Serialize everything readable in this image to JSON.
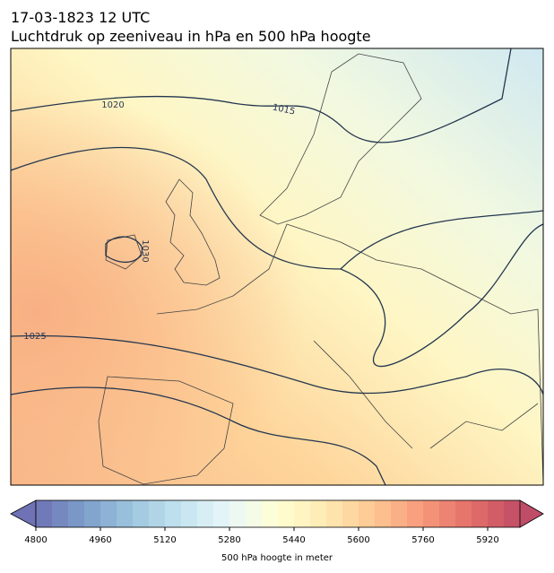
{
  "header": {
    "title": "17-03-1823 12 UTC",
    "subtitle": "Luchtdruk op zeeniveau in hPa en 500 hPa hoogte"
  },
  "map": {
    "contour_labels": [
      "1020",
      "1015",
      "1030",
      "1025"
    ]
  },
  "colorbar": {
    "range": [
      4800,
      6000
    ],
    "ticks": [
      4800,
      4960,
      5120,
      5280,
      5440,
      5600,
      5760,
      5920
    ],
    "label": "500 hPa hoogte in meter"
  }
}
